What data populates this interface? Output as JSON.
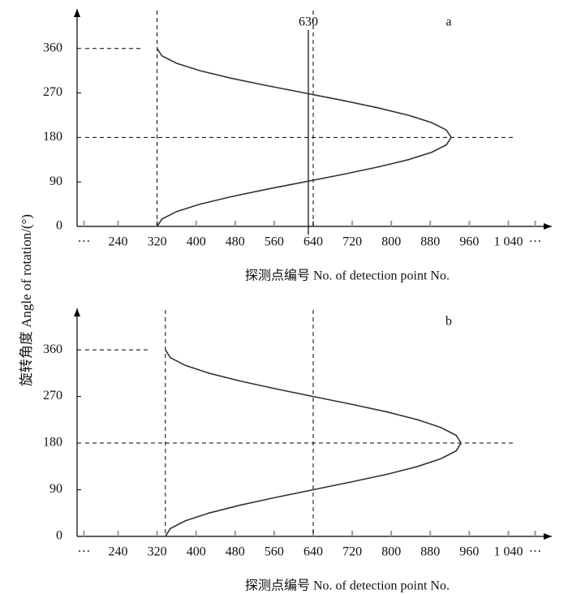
{
  "chart_data": [
    {
      "type": "line",
      "label": "a",
      "x": [
        320,
        330,
        360,
        408,
        471,
        544,
        622,
        700,
        772,
        835,
        883,
        913,
        923,
        913,
        883,
        835,
        772,
        700,
        622,
        544,
        471,
        408,
        360,
        330,
        320
      ],
      "y": [
        0,
        15,
        30,
        45,
        60,
        75,
        90,
        105,
        120,
        135,
        150,
        165,
        180,
        195,
        210,
        225,
        240,
        255,
        270,
        285,
        300,
        315,
        330,
        345,
        360
      ],
      "color": "#333333",
      "xlim": [
        156,
        1129
      ],
      "ylim": [
        0,
        440
      ],
      "xticks": [
        {
          "value": 170,
          "label": "···"
        },
        240,
        320,
        400,
        480,
        560,
        640,
        720,
        800,
        880,
        960,
        {
          "value": 1040,
          "label": "1 040"
        },
        {
          "value": 1095,
          "label": "···"
        }
      ],
      "yticks": [
        0,
        90,
        180,
        270,
        360
      ],
      "dashed_x": [
        320,
        640
      ],
      "dashed_y": [
        180,
        360
      ],
      "marker_x": {
        "value": 630,
        "label": "630"
      },
      "xlabel": "探测点编号 No. of detection point No.",
      "ylabel": "旋转角度 Angle of rotation/(°)"
    },
    {
      "type": "line",
      "label": "b",
      "x": [
        337,
        347,
        378,
        426,
        489,
        562,
        640,
        718,
        792,
        854,
        902,
        933,
        943,
        933,
        902,
        854,
        792,
        718,
        640,
        562,
        489,
        426,
        378,
        347,
        337
      ],
      "y": [
        0,
        15,
        30,
        45,
        60,
        75,
        90,
        105,
        120,
        135,
        150,
        165,
        180,
        195,
        210,
        225,
        240,
        255,
        270,
        285,
        300,
        315,
        330,
        345,
        360
      ],
      "color": "#333333",
      "xlim": [
        156,
        1129
      ],
      "ylim": [
        0,
        440
      ],
      "xticks": [
        {
          "value": 170,
          "label": "···"
        },
        240,
        320,
        400,
        480,
        560,
        640,
        720,
        800,
        880,
        960,
        {
          "value": 1040,
          "label": "1 040"
        },
        {
          "value": 1095,
          "label": "···"
        }
      ],
      "yticks": [
        0,
        90,
        180,
        270,
        360
      ],
      "dashed_x": [
        337,
        640
      ],
      "dashed_y": [
        180,
        360
      ],
      "xlabel": "探测点编号  No. of detection point No."
    }
  ]
}
